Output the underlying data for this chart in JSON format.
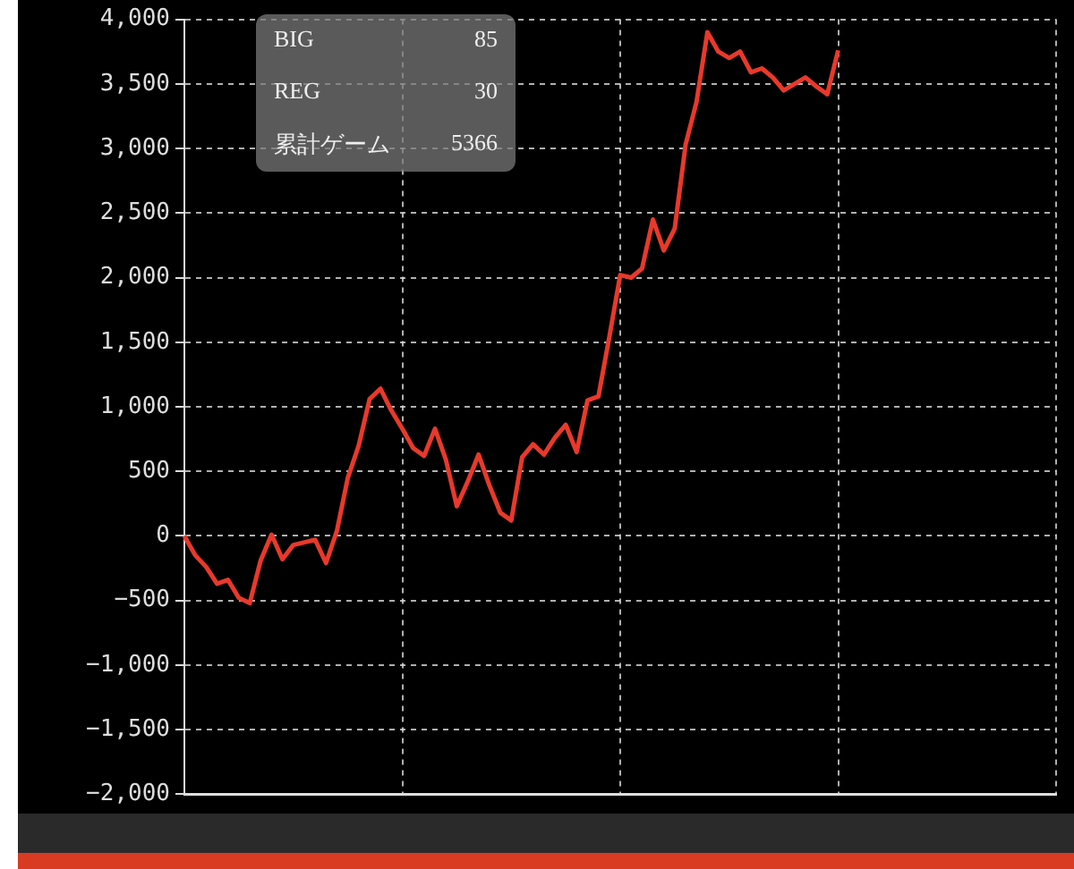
{
  "chart_data": {
    "type": "line",
    "categories": [
      null,
      null,
      null,
      null,
      null,
      null,
      null,
      null,
      null,
      null,
      null,
      null,
      null,
      null,
      null,
      null,
      null,
      null,
      null,
      null,
      null,
      null,
      null,
      null,
      null,
      null,
      null,
      null,
      null,
      null,
      null,
      null,
      null,
      null,
      null,
      null,
      null,
      null,
      null,
      null,
      null,
      null,
      null,
      null,
      null,
      null,
      null,
      null,
      null,
      null,
      null,
      null,
      null,
      null,
      null,
      null,
      null,
      null,
      null,
      null,
      null,
      null,
      null,
      null,
      null,
      null,
      null,
      null,
      null,
      null,
      null,
      null,
      null,
      null,
      null,
      null,
      null,
      null,
      null,
      null,
      null
    ],
    "series": [
      {
        "color": "#e8392b",
        "values": [
          0,
          -150,
          -240,
          -370,
          -340,
          -480,
          -520,
          -190,
          10,
          -180,
          -70,
          -50,
          -30,
          -210,
          40,
          450,
          700,
          1060,
          1140,
          970,
          830,
          680,
          620,
          830,
          590,
          230,
          420,
          630,
          390,
          180,
          120,
          610,
          710,
          630,
          760,
          860,
          650,
          1050,
          1080,
          1540,
          2020,
          2000,
          2070,
          2450,
          2210,
          2380,
          3030,
          3360,
          3900,
          3750,
          3700,
          3750,
          3590,
          3620,
          3550,
          3450,
          3500,
          3550,
          3480,
          3420,
          3760,
          null,
          null,
          null,
          null,
          null,
          null,
          null,
          null,
          null,
          null,
          null,
          null,
          null,
          null,
          null,
          null,
          null,
          null,
          null,
          null
        ]
      }
    ],
    "ylim": [
      -2000,
      4000
    ],
    "yticks": [
      {
        "value": -2000,
        "label": "−2,000"
      },
      {
        "value": -1500,
        "label": "−1,500"
      },
      {
        "value": -1000,
        "label": "−1,000"
      },
      {
        "value": -500,
        "label": "−500"
      },
      {
        "value": 0,
        "label": "0"
      },
      {
        "value": 500,
        "label": "500"
      },
      {
        "value": 1000,
        "label": "1,000"
      },
      {
        "value": 1500,
        "label": "1,500"
      },
      {
        "value": 2000,
        "label": "2,000"
      },
      {
        "value": 2500,
        "label": "2,500"
      },
      {
        "value": 3000,
        "label": "3,000"
      },
      {
        "value": 3500,
        "label": "3,500"
      },
      {
        "value": 4000,
        "label": "4,000"
      }
    ],
    "tick_labels": "y",
    "grid": true,
    "legend": false,
    "marker": "none",
    "line_style": "solid",
    "annotations": [
      "BIG",
      "85",
      "REG",
      "30",
      "累計ゲーム",
      "5366"
    ]
  }
}
